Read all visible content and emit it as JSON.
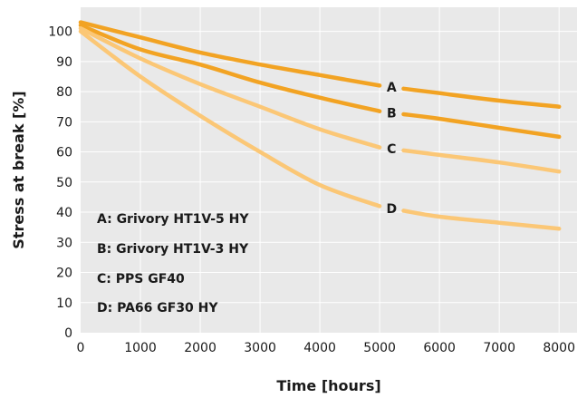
{
  "chart_data": {
    "type": "line",
    "xlabel": "Time [hours]",
    "ylabel": "Stress at break [%]",
    "xlim": [
      0,
      8300
    ],
    "ylim": [
      0,
      108
    ],
    "x_ticks": [
      0,
      1000,
      2000,
      3000,
      4000,
      5000,
      6000,
      7000,
      8000
    ],
    "y_ticks": [
      0,
      10,
      20,
      30,
      40,
      50,
      60,
      70,
      80,
      90,
      100
    ],
    "grid": true,
    "colors": {
      "plot_background": "#e9e9e9",
      "grid": "#ffffff",
      "series_dark": "#f2a323",
      "series_light": "#fbc776"
    },
    "series": [
      {
        "name": "A",
        "legend": "A:  Grivory HT1V-5 HY",
        "color": "#f2a323",
        "x": [
          0,
          1000,
          2000,
          3000,
          4000,
          5000,
          5400,
          6000,
          7000,
          8000
        ],
        "y": [
          103,
          98,
          93,
          89,
          85.5,
          82,
          81,
          79.5,
          77,
          75
        ]
      },
      {
        "name": "B",
        "legend": "B:  Grivory HT1V-3 HY",
        "color": "#f2a323",
        "x": [
          0,
          1000,
          2000,
          3000,
          4000,
          5000,
          5400,
          6000,
          7000,
          8000
        ],
        "y": [
          102,
          94,
          89,
          83,
          78,
          73.5,
          72.5,
          71,
          68,
          65
        ]
      },
      {
        "name": "C",
        "legend": "C:  PPS GF40",
        "color": "#fbc776",
        "x": [
          0,
          1000,
          2000,
          3000,
          4000,
          5000,
          5400,
          6000,
          7000,
          8000
        ],
        "y": [
          101,
          91,
          82.5,
          75,
          67.5,
          61.5,
          60.5,
          59,
          56.5,
          53.5
        ]
      },
      {
        "name": "D",
        "legend": "D:  PA66 GF30 HY",
        "color": "#fbc776",
        "x": [
          0,
          1000,
          2000,
          3000,
          4000,
          5000,
          5400,
          6000,
          7000,
          8000
        ],
        "y": [
          100,
          85,
          72,
          60,
          49,
          42,
          40.5,
          38.5,
          36.5,
          34.5
        ]
      }
    ]
  }
}
